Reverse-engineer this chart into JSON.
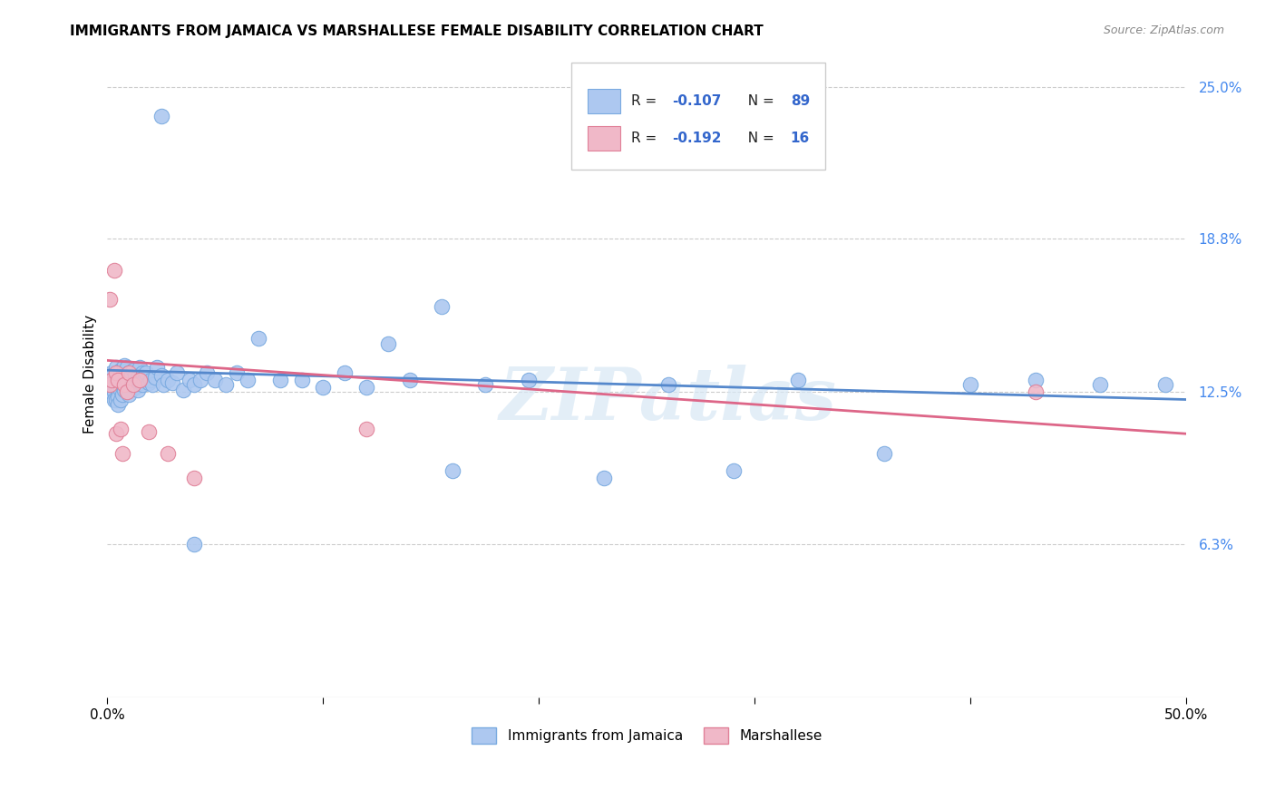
{
  "title": "IMMIGRANTS FROM JAMAICA VS MARSHALLESE FEMALE DISABILITY CORRELATION CHART",
  "source": "Source: ZipAtlas.com",
  "ylabel": "Female Disability",
  "yticks": [
    0.0,
    0.063,
    0.125,
    0.188,
    0.25
  ],
  "ytick_labels": [
    "",
    "6.3%",
    "12.5%",
    "18.8%",
    "25.0%"
  ],
  "series1_color": "#adc8f0",
  "series1_edge": "#7aaae0",
  "series2_color": "#f0b8c8",
  "series2_edge": "#e08098",
  "trend1_color": "#5588cc",
  "trend2_color": "#dd6688",
  "watermark_text": "ZIPatlas",
  "xmin": 0.0,
  "xmax": 0.5,
  "ymin": 0.0,
  "ymax": 0.265,
  "series1_x": [
    0.001,
    0.001,
    0.002,
    0.002,
    0.002,
    0.003,
    0.003,
    0.003,
    0.003,
    0.004,
    0.004,
    0.004,
    0.004,
    0.005,
    0.005,
    0.005,
    0.005,
    0.006,
    0.006,
    0.006,
    0.006,
    0.007,
    0.007,
    0.007,
    0.008,
    0.008,
    0.008,
    0.009,
    0.009,
    0.009,
    0.01,
    0.01,
    0.01,
    0.011,
    0.011,
    0.012,
    0.012,
    0.013,
    0.013,
    0.014,
    0.014,
    0.015,
    0.015,
    0.016,
    0.016,
    0.017,
    0.018,
    0.019,
    0.02,
    0.021,
    0.022,
    0.023,
    0.025,
    0.026,
    0.028,
    0.03,
    0.032,
    0.035,
    0.038,
    0.04,
    0.043,
    0.046,
    0.05,
    0.055,
    0.06,
    0.065,
    0.07,
    0.08,
    0.09,
    0.1,
    0.11,
    0.12,
    0.13,
    0.14,
    0.155,
    0.16,
    0.175,
    0.195,
    0.23,
    0.26,
    0.29,
    0.32,
    0.36,
    0.4,
    0.43,
    0.46,
    0.49,
    0.025,
    0.04
  ],
  "series1_y": [
    0.131,
    0.128,
    0.133,
    0.127,
    0.125,
    0.13,
    0.129,
    0.125,
    0.122,
    0.135,
    0.13,
    0.127,
    0.122,
    0.13,
    0.126,
    0.123,
    0.12,
    0.134,
    0.129,
    0.126,
    0.122,
    0.132,
    0.128,
    0.124,
    0.136,
    0.131,
    0.126,
    0.135,
    0.13,
    0.125,
    0.133,
    0.129,
    0.124,
    0.132,
    0.128,
    0.134,
    0.128,
    0.132,
    0.127,
    0.131,
    0.126,
    0.135,
    0.129,
    0.133,
    0.128,
    0.13,
    0.133,
    0.129,
    0.13,
    0.128,
    0.131,
    0.135,
    0.132,
    0.128,
    0.13,
    0.129,
    0.133,
    0.126,
    0.13,
    0.128,
    0.13,
    0.133,
    0.13,
    0.128,
    0.133,
    0.13,
    0.147,
    0.13,
    0.13,
    0.127,
    0.133,
    0.127,
    0.145,
    0.13,
    0.16,
    0.093,
    0.128,
    0.13,
    0.09,
    0.128,
    0.093,
    0.13,
    0.1,
    0.128,
    0.13,
    0.128,
    0.128,
    0.238,
    0.063
  ],
  "series2_x": [
    0.001,
    0.001,
    0.002,
    0.003,
    0.004,
    0.004,
    0.005,
    0.006,
    0.007,
    0.008,
    0.009,
    0.01,
    0.012,
    0.015,
    0.019,
    0.028,
    0.04,
    0.12,
    0.43
  ],
  "series2_y": [
    0.163,
    0.128,
    0.13,
    0.175,
    0.133,
    0.108,
    0.13,
    0.11,
    0.1,
    0.128,
    0.125,
    0.133,
    0.128,
    0.13,
    0.109,
    0.1,
    0.09,
    0.11,
    0.125
  ],
  "trend1_x0": 0.0,
  "trend1_y0": 0.134,
  "trend1_x1": 0.5,
  "trend1_y1": 0.122,
  "trend2_x0": 0.0,
  "trend2_y0": 0.138,
  "trend2_x1": 0.5,
  "trend2_y1": 0.108
}
